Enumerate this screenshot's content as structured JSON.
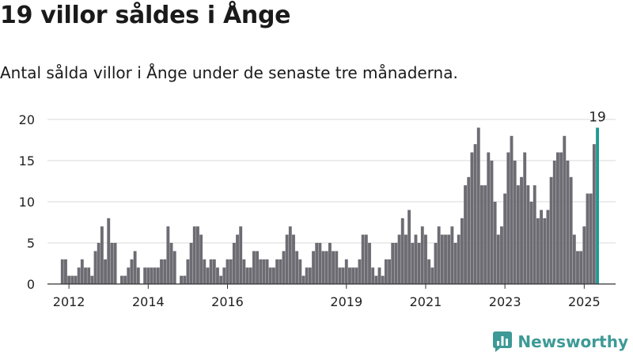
{
  "page": {
    "title": "19 villor såldes i Ånge",
    "subtitle": "Antal sålda villor i Ånge under de senaste tre månaderna.",
    "brand": "Newsworthy"
  },
  "colors": {
    "bar": "#6d6c73",
    "highlight": "#1e9a94",
    "grid": "#d9d9d9",
    "axis": "#333333",
    "brand": "#3d9a96"
  },
  "chart_data": {
    "type": "bar",
    "title": "",
    "xlabel": "",
    "ylabel": "",
    "ylim": [
      0,
      20
    ],
    "yticks": [
      0,
      5,
      10,
      15,
      20
    ],
    "grid": true,
    "x_axis": {
      "start": "2011-08",
      "end": "2025-11",
      "ticks": [
        {
          "label": "2012",
          "date": "2012-02"
        },
        {
          "label": "2014",
          "date": "2014-02"
        },
        {
          "label": "2016",
          "date": "2016-02"
        },
        {
          "label": "2019",
          "date": "2019-02"
        },
        {
          "label": "2021",
          "date": "2021-02"
        },
        {
          "label": "2023",
          "date": "2023-02"
        },
        {
          "label": "2025",
          "date": "2025-02"
        }
      ]
    },
    "start_month": "2011-12",
    "values": [
      3,
      3,
      1,
      1,
      1,
      2,
      3,
      2,
      2,
      1,
      4,
      5,
      7,
      3,
      8,
      5,
      5,
      0,
      1,
      1,
      2,
      3,
      4,
      2,
      0,
      2,
      2,
      2,
      2,
      2,
      3,
      3,
      7,
      5,
      4,
      0,
      1,
      1,
      3,
      5,
      7,
      7,
      6,
      3,
      2,
      3,
      3,
      2,
      1,
      2,
      3,
      3,
      5,
      6,
      7,
      3,
      2,
      2,
      4,
      4,
      3,
      3,
      3,
      2,
      2,
      3,
      3,
      4,
      6,
      7,
      6,
      4,
      3,
      1,
      2,
      2,
      4,
      5,
      5,
      4,
      4,
      5,
      4,
      4,
      2,
      2,
      3,
      2,
      2,
      2,
      3,
      6,
      6,
      5,
      2,
      1,
      2,
      1,
      3,
      3,
      5,
      5,
      6,
      8,
      6,
      9,
      5,
      6,
      5,
      7,
      6,
      3,
      2,
      5,
      7,
      6,
      6,
      6,
      7,
      5,
      6,
      8,
      12,
      13,
      16,
      17,
      19,
      12,
      12,
      16,
      15,
      10,
      6,
      7,
      11,
      16,
      18,
      15,
      12,
      13,
      16,
      12,
      10,
      12,
      8,
      9,
      8,
      9,
      13,
      15,
      16,
      16,
      18,
      15,
      13,
      6,
      4,
      4,
      7,
      11,
      11,
      17,
      19
    ],
    "annotation": {
      "label": "19"
    }
  }
}
